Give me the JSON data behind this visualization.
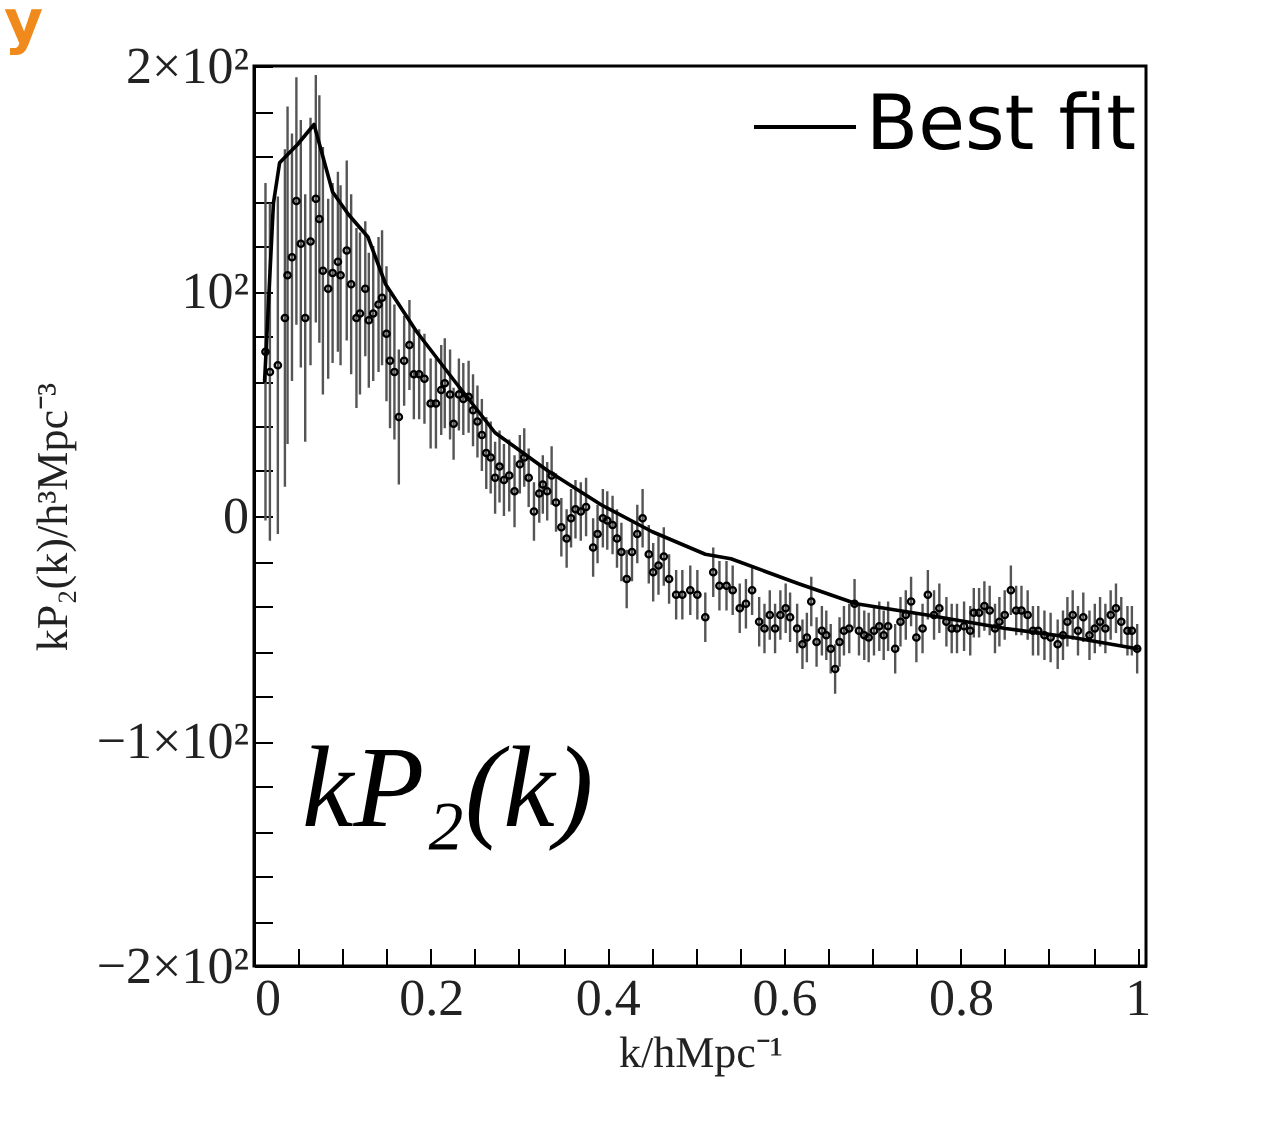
{
  "chart_data": {
    "type": "scatter",
    "title": "y",
    "xlabel": "k/hMpc⁻¹",
    "ylabel": "kP₂(k)/h³Mpc⁻³",
    "annotations": [
      "kP₂(k)"
    ],
    "xlim": [
      0,
      1.01
    ],
    "ylim": [
      -200,
      200
    ],
    "xticks": [
      0,
      {
        "value": 0.05,
        "label": null
      },
      {
        "value": 0.1,
        "label": null
      },
      {
        "value": 0.15,
        "label": null
      },
      0.2,
      {
        "value": 0.25,
        "label": null
      },
      {
        "value": 0.3,
        "label": null
      },
      {
        "value": 0.35,
        "label": null
      },
      0.4,
      {
        "value": 0.45,
        "label": null
      },
      {
        "value": 0.5,
        "label": null
      },
      {
        "value": 0.55,
        "label": null
      },
      0.6,
      {
        "value": 0.65,
        "label": null
      },
      {
        "value": 0.7,
        "label": null
      },
      {
        "value": 0.75,
        "label": null
      },
      0.8,
      {
        "value": 0.85,
        "label": null
      },
      {
        "value": 0.9,
        "label": null
      },
      {
        "value": 0.95,
        "label": null
      },
      1
    ],
    "yticks": [
      {
        "value": -200,
        "label": "−2×10²"
      },
      {
        "value": -180,
        "label": null
      },
      {
        "value": -160,
        "label": null
      },
      {
        "value": -140,
        "label": null
      },
      {
        "value": -120,
        "label": null
      },
      {
        "value": -100,
        "label": "−1×10²"
      },
      {
        "value": -80,
        "label": null
      },
      {
        "value": -60,
        "label": null
      },
      {
        "value": -40,
        "label": null
      },
      {
        "value": -20,
        "label": null
      },
      0,
      {
        "value": 20,
        "label": null
      },
      {
        "value": 40,
        "label": null
      },
      {
        "value": 60,
        "label": null
      },
      {
        "value": 80,
        "label": null
      },
      {
        "value": 100,
        "label": "10²"
      },
      {
        "value": 120,
        "label": null
      },
      {
        "value": 140,
        "label": null
      },
      {
        "value": 160,
        "label": null
      },
      {
        "value": 180,
        "label": null
      },
      {
        "value": 200,
        "label": "2×10²"
      }
    ],
    "grid": false,
    "legend": "top right",
    "series": [
      {
        "marker": "circle",
        "color": "#000000",
        "x": [
          0.013,
          0.018,
          0.027,
          0.035,
          0.038,
          0.043,
          0.048,
          0.053,
          0.058,
          0.064,
          0.07,
          0.074,
          0.078,
          0.084,
          0.089,
          0.095,
          0.098,
          0.105,
          0.11,
          0.116,
          0.12,
          0.126,
          0.13,
          0.135,
          0.141,
          0.145,
          0.15,
          0.154,
          0.159,
          0.164,
          0.17,
          0.176,
          0.181,
          0.187,
          0.193,
          0.2,
          0.206,
          0.212,
          0.216,
          0.222,
          0.226,
          0.232,
          0.237,
          0.243,
          0.248,
          0.253,
          0.258,
          0.263,
          0.268,
          0.273,
          0.278,
          0.283,
          0.289,
          0.295,
          0.301,
          0.306,
          0.311,
          0.317,
          0.323,
          0.327,
          0.332,
          0.337,
          0.342,
          0.348,
          0.354,
          0.359,
          0.364,
          0.37,
          0.376,
          0.384,
          0.389,
          0.395,
          0.4,
          0.406,
          0.411,
          0.416,
          0.422,
          0.428,
          0.434,
          0.44,
          0.447,
          0.452,
          0.458,
          0.464,
          0.47,
          0.478,
          0.485,
          0.494,
          0.502,
          0.511,
          0.52,
          0.527,
          0.535,
          0.542,
          0.55,
          0.557,
          0.564,
          0.572,
          0.578,
          0.584,
          0.59,
          0.596,
          0.602,
          0.607,
          0.615,
          0.621,
          0.626,
          0.631,
          0.637,
          0.643,
          0.648,
          0.653,
          0.658,
          0.663,
          0.668,
          0.674,
          0.68,
          0.685,
          0.691,
          0.696,
          0.702,
          0.708,
          0.713,
          0.718,
          0.726,
          0.732,
          0.738,
          0.744,
          0.75,
          0.757,
          0.763,
          0.77,
          0.776,
          0.784,
          0.79,
          0.796,
          0.804,
          0.811,
          0.815,
          0.821,
          0.827,
          0.833,
          0.839,
          0.844,
          0.85,
          0.857,
          0.863,
          0.869,
          0.876,
          0.882,
          0.888,
          0.895,
          0.902,
          0.91,
          0.916,
          0.921,
          0.927,
          0.933,
          0.939,
          0.946,
          0.952,
          0.958,
          0.964,
          0.97,
          0.976,
          0.982,
          0.989,
          0.994,
          1.0
        ],
        "values": [
          73,
          64,
          67,
          88,
          107,
          115,
          140,
          121,
          88,
          122,
          141,
          132,
          109,
          101,
          108,
          113,
          107,
          118,
          103,
          88,
          90,
          101,
          87,
          90,
          94,
          97,
          81,
          69,
          64,
          44,
          69,
          76,
          63,
          63,
          61,
          50,
          50,
          56,
          59,
          54,
          41,
          54,
          52,
          53,
          47,
          42,
          36,
          28,
          26,
          17,
          22,
          16,
          18,
          11,
          23,
          26,
          17,
          2,
          10,
          14,
          11,
          18,
          6,
          -5,
          -10,
          -1,
          3,
          2,
          4,
          -14,
          -8,
          -1,
          -2,
          -4,
          -10,
          -16,
          -28,
          -16,
          -8,
          -1,
          -17,
          -25,
          -22,
          -18,
          -28,
          -35,
          -35,
          -33,
          -35,
          -45,
          -25,
          -31,
          -31,
          -33,
          -41,
          -39,
          -33,
          -47,
          -50,
          -44,
          -50,
          -44,
          -41,
          -45,
          -50,
          -57,
          -54,
          -38,
          -56,
          -51,
          -53,
          -59,
          -68,
          -56,
          -51,
          -50,
          -39,
          -51,
          -53,
          -54,
          -51,
          -49,
          -53,
          -49,
          -59,
          -47,
          -44,
          -38,
          -54,
          -50,
          -35,
          -44,
          -41,
          -47,
          -50,
          -50,
          -49,
          -51,
          -43,
          -43,
          -40,
          -42,
          -50,
          -47,
          -44,
          -33,
          -42,
          -42,
          -44,
          -51,
          -51,
          -53,
          -54,
          -57,
          -53,
          -47,
          -44,
          -51,
          -45,
          -53,
          -50,
          -47,
          -50,
          -44,
          -41,
          -47,
          -51,
          -51,
          -59
        ],
        "errors": [
          75,
          75,
          75,
          75,
          75,
          55,
          55,
          55,
          55,
          55,
          55,
          55,
          55,
          40,
          40,
          40,
          40,
          40,
          40,
          40,
          36,
          30,
          30,
          30,
          30,
          30,
          30,
          30,
          30,
          30,
          20,
          20,
          20,
          20,
          20,
          20,
          20,
          20,
          20,
          20,
          16,
          16,
          16,
          16,
          16,
          16,
          16,
          16,
          16,
          16,
          16,
          16,
          16,
          16,
          13,
          13,
          13,
          13,
          13,
          13,
          13,
          13,
          13,
          13,
          13,
          13,
          13,
          13,
          13,
          13,
          13,
          13,
          13,
          13,
          13,
          13,
          13,
          13,
          13,
          13,
          13,
          13,
          13,
          13,
          11,
          11,
          11,
          11,
          11,
          11,
          11,
          11,
          11,
          11,
          11,
          11,
          11,
          11,
          11,
          11,
          11,
          11,
          11,
          11,
          11,
          11,
          11,
          11,
          11,
          11,
          11,
          11,
          11,
          11,
          11,
          11,
          11,
          11,
          11,
          11,
          11,
          11,
          11,
          11,
          11,
          11,
          11,
          11,
          11,
          11,
          11,
          11,
          11,
          11,
          11,
          11,
          11,
          11,
          11,
          11,
          11,
          11,
          11,
          11,
          11,
          11,
          11,
          11,
          11,
          11,
          11,
          11,
          11,
          11,
          11,
          11,
          11,
          11,
          11,
          11,
          11,
          11,
          11,
          11,
          11,
          11,
          11,
          11,
          11
        ]
      },
      {
        "type": "line",
        "name": "Best fit",
        "color": "#000000",
        "x": [
          0.012,
          0.022,
          0.029,
          0.049,
          0.068,
          0.089,
          0.107,
          0.129,
          0.149,
          0.184,
          0.229,
          0.273,
          0.333,
          0.393,
          0.451,
          0.511,
          0.54,
          0.616,
          0.682,
          0.762,
          0.851,
          0.927,
          1.0
        ],
        "values": [
          60,
          139,
          157,
          165,
          174,
          144,
          134,
          124,
          103,
          82,
          59,
          37,
          20,
          5,
          -7,
          -17,
          -19,
          -30,
          -39,
          -44,
          -50,
          -54,
          -59
        ]
      }
    ]
  }
}
